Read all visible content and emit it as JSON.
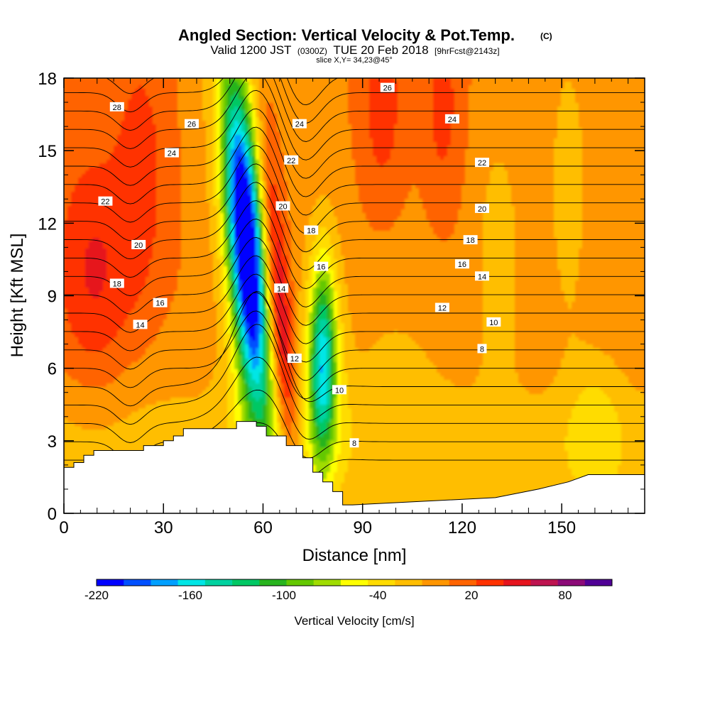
{
  "chart_data": {
    "type": "heatmap",
    "title": "Angled Section: Vertical Velocity & Pot.Temp.",
    "title_tag": "(C)",
    "subtitle": {
      "valid": "Valid 1200 JST",
      "utc": "(0300Z)",
      "date": "TUE 20 Feb 2018",
      "forecast": "[9hrFcst@2143z]"
    },
    "slice_label": "slice X,Y= 34,23@45°",
    "xlabel": "Distance [nm]",
    "ylabel": "Height [Kft MSL]",
    "xlim": [
      0,
      175
    ],
    "ylim": [
      0,
      18
    ],
    "x_ticks": [
      "0",
      "30",
      "60",
      "90",
      "120",
      "150"
    ],
    "x_tick_values": [
      0,
      30,
      60,
      90,
      120,
      150
    ],
    "y_ticks": [
      "0",
      "3",
      "6",
      "9",
      "12",
      "15",
      "18"
    ],
    "y_tick_values": [
      0,
      3,
      6,
      9,
      12,
      15,
      18
    ],
    "colorbar": {
      "label": "Vertical Velocity [cm/s]",
      "tick_labels": [
        "-220",
        "-160",
        "-100",
        "-40",
        "20",
        "80"
      ],
      "tick_values": [
        -220,
        -160,
        -100,
        -40,
        20,
        80
      ],
      "range": [
        -220,
        110
      ],
      "colors": [
        "#0000ff",
        "#0050ff",
        "#00a0ff",
        "#00e6e6",
        "#00d2a0",
        "#00c864",
        "#28b41e",
        "#64c800",
        "#a0dc00",
        "#ffff00",
        "#ffdc00",
        "#ffbe00",
        "#ff9600",
        "#ff6400",
        "#ff3200",
        "#e6141e",
        "#be1450",
        "#8c0a78",
        "#500096"
      ]
    },
    "velocity_features": [
      {
        "kind": "downdraft",
        "x": 55,
        "y": 11,
        "peak": -200
      },
      {
        "kind": "updraft",
        "x": 65,
        "y": 8,
        "peak": 80
      },
      {
        "kind": "downdraft",
        "x": 78,
        "y": 6,
        "peak": -100
      },
      {
        "kind": "updraft",
        "x": 10,
        "y": 10,
        "peak": 40
      },
      {
        "kind": "updraft",
        "x": 25,
        "y": 14,
        "peak": 30
      },
      {
        "kind": "updraft",
        "x": 96,
        "y": 17,
        "peak": 30
      },
      {
        "kind": "weak-down",
        "x": 130,
        "y": 10,
        "peak": -30
      },
      {
        "kind": "weak-down",
        "x": 152,
        "y": 13,
        "peak": -30
      }
    ],
    "terrain": {
      "x": [
        0,
        3,
        3,
        6,
        6,
        9,
        9,
        24,
        24,
        30,
        30,
        33,
        33,
        36,
        36,
        52,
        52,
        58,
        58,
        61,
        61,
        67,
        67,
        72,
        72,
        75,
        75,
        78,
        78,
        81,
        81,
        84,
        84,
        87,
        87,
        130,
        130,
        143,
        143,
        152,
        152,
        158,
        158,
        175
      ],
      "y": [
        1.9,
        1.9,
        2.1,
        2.1,
        2.4,
        2.4,
        2.6,
        2.6,
        2.8,
        2.8,
        3.0,
        3.0,
        3.2,
        3.2,
        3.5,
        3.5,
        3.8,
        3.8,
        3.6,
        3.6,
        3.2,
        3.2,
        2.8,
        2.8,
        2.3,
        2.3,
        1.7,
        1.7,
        1.3,
        1.3,
        0.9,
        0.9,
        0.35,
        0.35,
        0.35,
        0.65,
        0.65,
        1.0,
        1.0,
        1.3,
        1.3,
        1.6,
        1.6,
        1.6
      ]
    },
    "theta_contours": [
      {
        "value": 8,
        "label": "8"
      },
      {
        "value": 10,
        "label": "10"
      },
      {
        "value": 12,
        "label": "12"
      },
      {
        "value": 14,
        "label": "14"
      },
      {
        "value": 16,
        "label": "16"
      },
      {
        "value": 18,
        "label": "18"
      },
      {
        "value": 20,
        "label": "20"
      },
      {
        "value": 22,
        "label": "22"
      },
      {
        "value": 24,
        "label": "24"
      },
      {
        "value": 26,
        "label": "26"
      },
      {
        "value": 28,
        "label": "28"
      }
    ],
    "contour_labels": [
      {
        "text": "28",
        "x": 16,
        "y": 16.8
      },
      {
        "text": "26",
        "x": 38.5,
        "y": 16.1
      },
      {
        "text": "24",
        "x": 32.5,
        "y": 14.9
      },
      {
        "text": "22",
        "x": 12.5,
        "y": 12.9
      },
      {
        "text": "20",
        "x": 22.5,
        "y": 11.1
      },
      {
        "text": "18",
        "x": 16,
        "y": 9.5
      },
      {
        "text": "16",
        "x": 29,
        "y": 8.7
      },
      {
        "text": "14",
        "x": 23,
        "y": 7.8
      },
      {
        "text": "24",
        "x": 71,
        "y": 16.1
      },
      {
        "text": "22",
        "x": 68.5,
        "y": 14.6
      },
      {
        "text": "20",
        "x": 66,
        "y": 12.7
      },
      {
        "text": "18",
        "x": 74.5,
        "y": 11.7
      },
      {
        "text": "16",
        "x": 77.5,
        "y": 10.2
      },
      {
        "text": "14",
        "x": 65.5,
        "y": 9.3
      },
      {
        "text": "12",
        "x": 69.5,
        "y": 6.4
      },
      {
        "text": "10",
        "x": 83,
        "y": 5.1
      },
      {
        "text": "8",
        "x": 87.5,
        "y": 2.9
      },
      {
        "text": "26",
        "x": 97.5,
        "y": 17.6
      },
      {
        "text": "24",
        "x": 117,
        "y": 16.3
      },
      {
        "text": "22",
        "x": 126,
        "y": 14.5
      },
      {
        "text": "20",
        "x": 126,
        "y": 12.6
      },
      {
        "text": "18",
        "x": 122.5,
        "y": 11.3
      },
      {
        "text": "16",
        "x": 120,
        "y": 10.3
      },
      {
        "text": "14",
        "x": 126,
        "y": 9.8
      },
      {
        "text": "12",
        "x": 114,
        "y": 8.5
      },
      {
        "text": "10",
        "x": 129.5,
        "y": 7.9
      },
      {
        "text": "8",
        "x": 126,
        "y": 6.8
      }
    ]
  }
}
